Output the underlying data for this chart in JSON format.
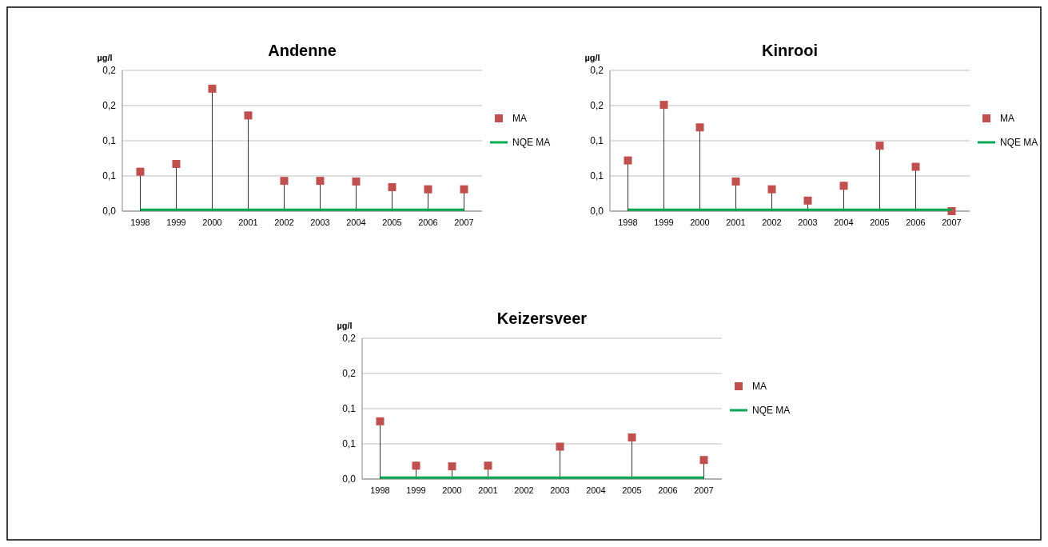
{
  "chart_data": [
    {
      "type": "lollipop",
      "title": "Andenne",
      "ylabel": "µg/l",
      "categories": [
        "1998",
        "1999",
        "2000",
        "2001",
        "2002",
        "2003",
        "2004",
        "2005",
        "2006",
        "2007"
      ],
      "ylim": [
        0,
        0.2
      ],
      "yticks": [
        {
          "value": 0,
          "label": "0,0"
        },
        {
          "value": 0.05,
          "label": "0,1"
        },
        {
          "value": 0.1,
          "label": "0,1"
        },
        {
          "value": 0.15,
          "label": "0,2"
        },
        {
          "value": 0.2,
          "label": "0,2"
        }
      ],
      "grid": "y",
      "legend": "right",
      "series": [
        {
          "name": "MA",
          "color": "#c0504d",
          "marker": "square",
          "values": [
            0.056,
            0.067,
            0.174,
            0.136,
            0.043,
            0.043,
            0.042,
            0.034,
            0.031,
            0.031
          ]
        },
        {
          "name": "NQE MA",
          "type": "line",
          "color": "#00a650",
          "marker": "none",
          "values": [
            0.002,
            0.002,
            0.002,
            0.002,
            0.002,
            0.002,
            0.002,
            0.002,
            0.002,
            0.002
          ]
        }
      ]
    },
    {
      "type": "lollipop",
      "title": "Kinrooi",
      "ylabel": "µg/l",
      "categories": [
        "1998",
        "1999",
        "2000",
        "2001",
        "2002",
        "2003",
        "2004",
        "2005",
        "2006",
        "2007"
      ],
      "ylim": [
        0,
        0.2
      ],
      "yticks": [
        {
          "value": 0,
          "label": "0,0"
        },
        {
          "value": 0.05,
          "label": "0,1"
        },
        {
          "value": 0.1,
          "label": "0,1"
        },
        {
          "value": 0.15,
          "label": "0,2"
        },
        {
          "value": 0.2,
          "label": "0,2"
        }
      ],
      "grid": "y",
      "legend": "right",
      "series": [
        {
          "name": "MA",
          "color": "#c0504d",
          "marker": "square",
          "values": [
            0.072,
            0.151,
            0.119,
            0.042,
            0.031,
            0.015,
            0.036,
            0.093,
            0.063,
            0
          ]
        },
        {
          "name": "NQE MA",
          "type": "line",
          "color": "#00a650",
          "marker": "none",
          "values": [
            0.002,
            0.002,
            0.002,
            0.002,
            0.002,
            0.002,
            0.002,
            0.002,
            0.002,
            0.002
          ]
        }
      ]
    },
    {
      "type": "lollipop",
      "title": "Keizersveer",
      "ylabel": "µg/l",
      "categories": [
        "1998",
        "1999",
        "2000",
        "2001",
        "2002",
        "2003",
        "2004",
        "2005",
        "2006",
        "2007"
      ],
      "ylim": [
        0,
        0.2
      ],
      "yticks": [
        {
          "value": 0,
          "label": "0,0"
        },
        {
          "value": 0.05,
          "label": "0,1"
        },
        {
          "value": 0.1,
          "label": "0,1"
        },
        {
          "value": 0.15,
          "label": "0,2"
        },
        {
          "value": 0.2,
          "label": "0,2"
        }
      ],
      "grid": "y",
      "legend": "right",
      "series": [
        {
          "name": "MA",
          "color": "#c0504d",
          "marker": "square",
          "values": [
            0.082,
            0.019,
            0.018,
            0.019,
            null,
            0.046,
            null,
            0.059,
            null,
            0.027
          ]
        },
        {
          "name": "NQE MA",
          "type": "line",
          "color": "#00a650",
          "marker": "none",
          "values": [
            0.002,
            0.002,
            0.002,
            0.002,
            0.002,
            0.002,
            0.002,
            0.002,
            0.002,
            0.002
          ]
        }
      ]
    }
  ]
}
